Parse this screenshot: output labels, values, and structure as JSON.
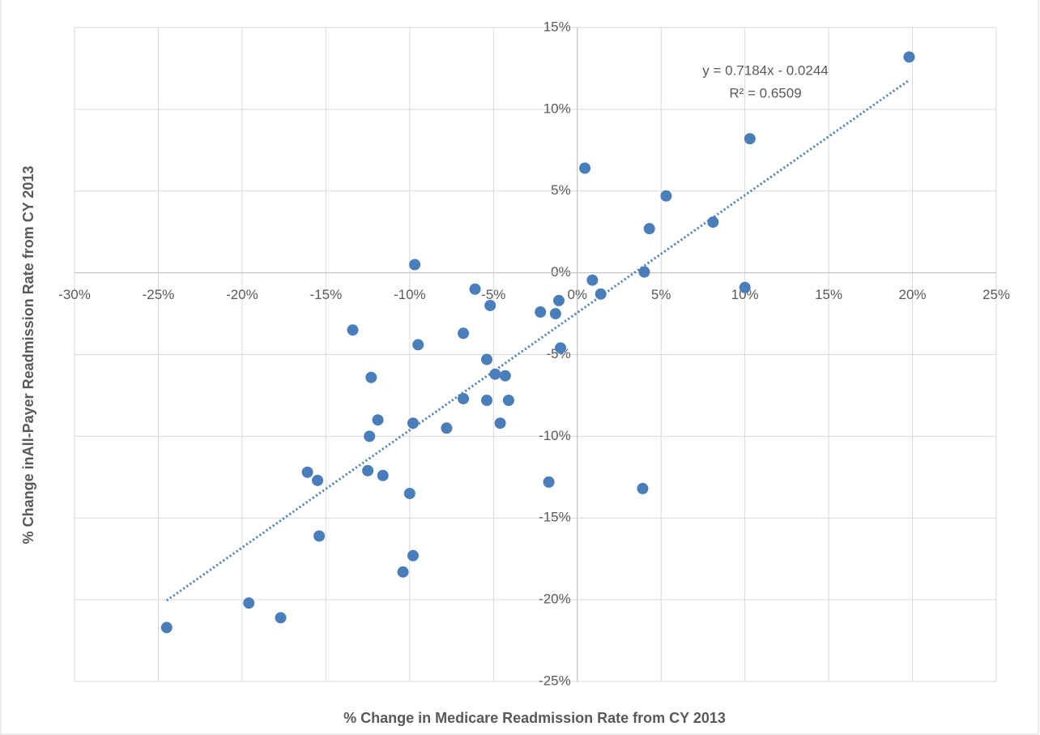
{
  "chart_data": {
    "type": "scatter",
    "x_label": "% Change in Medicare Readmission Rate from CY 2013",
    "y_label": "% Change inAll-Payer Readmission Rate from CY 2013",
    "annotations": [
      "y = 0.7184x - 0.0244",
      "R² = 0.6509"
    ],
    "trendline": {
      "slope": 0.7184,
      "intercept": -2.44
    },
    "color": "#4a7ebb",
    "grid": true,
    "xlim": [
      -30,
      25
    ],
    "xticks": [
      {
        "value": -30,
        "label": "-30%"
      },
      {
        "value": -25,
        "label": "-25%"
      },
      {
        "value": -20,
        "label": "-20%"
      },
      {
        "value": -15,
        "label": "-15%"
      },
      {
        "value": -10,
        "label": "-10%"
      },
      {
        "value": -5,
        "label": "-5%"
      },
      {
        "value": 0,
        "label": "0%"
      },
      {
        "value": 5,
        "label": "5%"
      },
      {
        "value": 10,
        "label": "10%"
      },
      {
        "value": 15,
        "label": "15%"
      },
      {
        "value": 20,
        "label": "20%"
      },
      {
        "value": 25,
        "label": "25%"
      }
    ],
    "ylim": [
      -25,
      15
    ],
    "yticks": [
      {
        "value": -25,
        "label": "-25%"
      },
      {
        "value": -20,
        "label": "-20%"
      },
      {
        "value": -15,
        "label": "-15%"
      },
      {
        "value": -10,
        "label": "-10%"
      },
      {
        "value": -5,
        "label": "-5%"
      },
      {
        "value": 0,
        "label": "0%"
      },
      {
        "value": 5,
        "label": "5%"
      },
      {
        "value": 10,
        "label": "10%"
      },
      {
        "value": 15,
        "label": "15%"
      }
    ],
    "x": [
      19.8,
      10.3,
      0.45,
      5.3,
      4.3,
      8.1,
      -9.7,
      4.0,
      10.0,
      0.9,
      1.4,
      -6.1,
      -1.1,
      -5.2,
      -2.2,
      -1.3,
      -13.4,
      -6.8,
      -9.5,
      -1.0,
      -5.4,
      -4.9,
      -4.3,
      -12.3,
      -6.8,
      -5.4,
      -4.1,
      -11.9,
      -9.8,
      -4.6,
      -7.8,
      -12.4,
      -16.1,
      -12.5,
      -11.6,
      -15.5,
      -1.7,
      -10.0,
      3.9,
      -15.4,
      -9.8,
      -10.4,
      -19.6,
      -17.7,
      -24.5
    ],
    "values": [
      13.2,
      8.2,
      6.4,
      4.7,
      2.7,
      3.1,
      0.5,
      0.05,
      -0.9,
      -0.45,
      -1.3,
      -1.0,
      -1.7,
      -2.0,
      -2.4,
      -2.5,
      -3.5,
      -3.7,
      -4.4,
      -4.6,
      -5.3,
      -6.2,
      -6.3,
      -6.4,
      -7.7,
      -7.8,
      -7.8,
      -9.0,
      -9.2,
      -9.2,
      -9.5,
      -10.0,
      -12.2,
      -12.1,
      -12.4,
      -12.7,
      -12.8,
      -13.5,
      -13.2,
      -16.1,
      -17.3,
      -18.3,
      -20.2,
      -21.1,
      -21.7
    ]
  }
}
